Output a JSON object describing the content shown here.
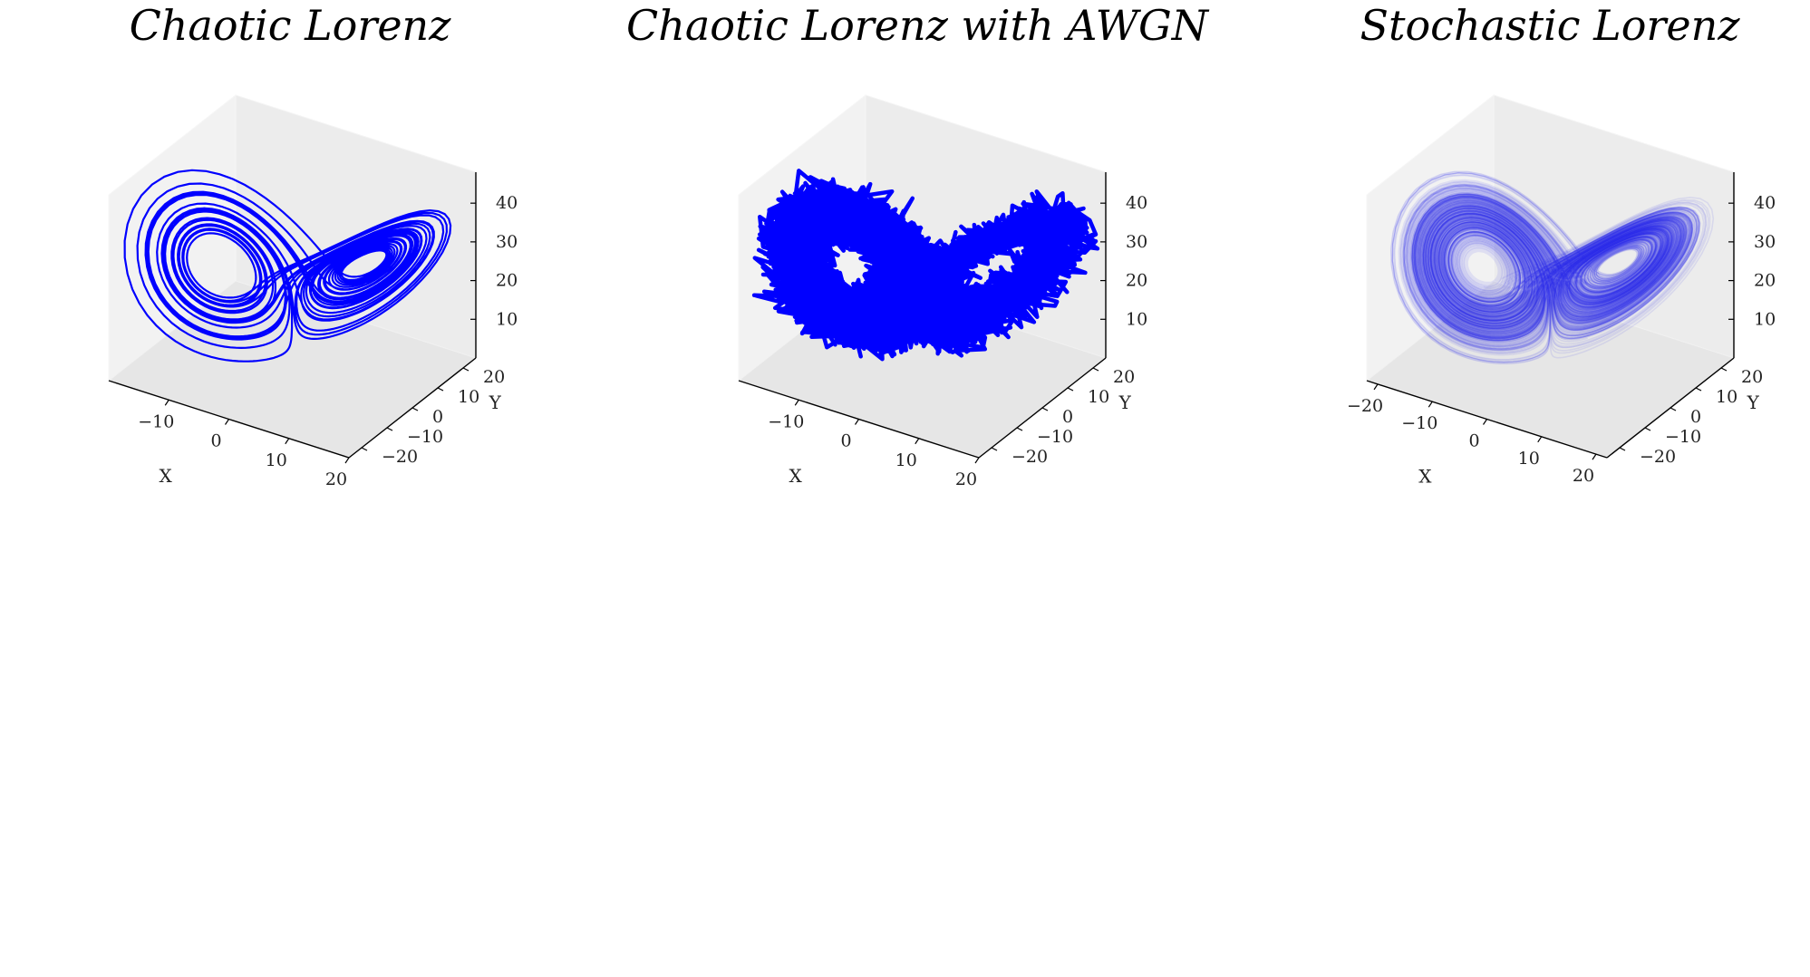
{
  "chart_data": [
    {
      "type": "line3d",
      "title": "Chaotic Lorenz",
      "xlabel": "X",
      "ylabel": "Y",
      "zlabel": "",
      "xticks": [
        "−10",
        "0",
        "10",
        "20"
      ],
      "yticks": [
        "−20",
        "−10",
        "0",
        "10",
        "20"
      ],
      "zticks": [
        "10",
        "20",
        "30",
        "40"
      ],
      "xlim": [
        -20,
        20
      ],
      "ylim": [
        -25,
        25
      ],
      "zlim": [
        0,
        48
      ],
      "series": [
        {
          "color": "#0000ff",
          "style": "line",
          "opacity": 1.0,
          "noise": 0
        }
      ],
      "grid": false
    },
    {
      "type": "line3d",
      "title": "Chaotic Lorenz with AWGN",
      "xlabel": "X",
      "ylabel": "Y",
      "zlabel": "",
      "xticks": [
        "−10",
        "0",
        "10",
        "20"
      ],
      "yticks": [
        "−20",
        "−10",
        "0",
        "10",
        "20"
      ],
      "zticks": [
        "10",
        "20",
        "30",
        "40"
      ],
      "xlim": [
        -20,
        20
      ],
      "ylim": [
        -25,
        25
      ],
      "zlim": [
        0,
        48
      ],
      "series": [
        {
          "color": "#0000ff",
          "style": "noisy",
          "opacity": 1.0,
          "noise": 1.6
        }
      ],
      "grid": false
    },
    {
      "type": "line3d",
      "title": "Stochastic Lorenz",
      "xlabel": "X",
      "ylabel": "Y",
      "zlabel": "",
      "xticks": [
        "−20",
        "−10",
        "0",
        "10",
        "20"
      ],
      "yticks": [
        "−20",
        "−10",
        "0",
        "10",
        "20"
      ],
      "zticks": [
        "10",
        "20",
        "30",
        "40"
      ],
      "xlim": [
        -22,
        22
      ],
      "ylim": [
        -25,
        25
      ],
      "zlim": [
        0,
        48
      ],
      "series": [
        {
          "color": "#1a1aee",
          "style": "ensemble",
          "opacity": 0.06,
          "noise": 0
        }
      ],
      "grid": false
    }
  ]
}
